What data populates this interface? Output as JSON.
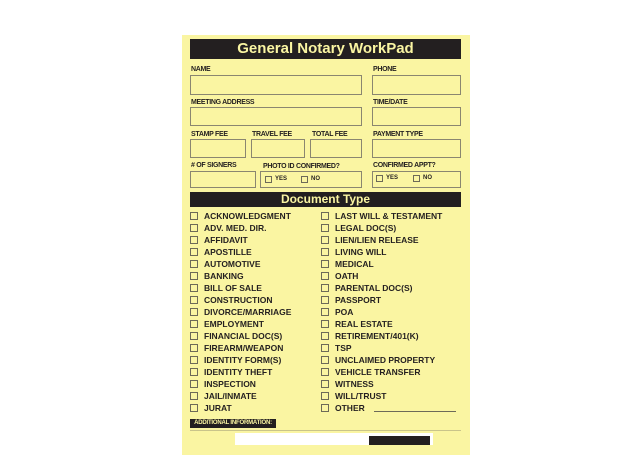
{
  "title": "General Notary WorkPad",
  "fields": {
    "name": "NAME",
    "phone": "PHONE",
    "meeting_address": "MEETING ADDRESS",
    "time_date": "TIME/DATE",
    "stamp_fee": "STAMP FEE",
    "travel_fee": "TRAVEL FEE",
    "total_fee": "TOTAL FEE",
    "payment_type": "PAYMENT TYPE",
    "signers": "# OF SIGNERS",
    "photo_id": "PHOTO ID CONFIRMED?",
    "confirmed_appt": "CONFIRMED APPT?",
    "yes": "YES",
    "no": "NO"
  },
  "document_type": {
    "heading": "Document Type",
    "left": [
      "ACKNOWLEDGMENT",
      "ADV. MED. DIR.",
      "AFFIDAVIT",
      "APOSTILLE",
      "AUTOMOTIVE",
      "BANKING",
      "BILL OF SALE",
      "CONSTRUCTION",
      "DIVORCE/MARRIAGE",
      "EMPLOYMENT",
      "FINANCIAL DOC(S)",
      "FIREARM/WEAPON",
      "IDENTITY FORM(S)",
      "IDENTITY THEFT",
      "INSPECTION",
      "JAIL/INMATE",
      "JURAT"
    ],
    "right": [
      "LAST WILL & TESTAMENT",
      "LEGAL DOC(S)",
      "LIEN/LIEN RELEASE",
      "LIVING WILL",
      "MEDICAL",
      "OATH",
      "PARENTAL DOC(S)",
      "PASSPORT",
      "POA",
      "REAL ESTATE",
      "RETIREMENT/401(K)",
      "TSP",
      "UNCLAIMED PROPERTY",
      "VEHICLE TRANSFER",
      "WITNESS",
      "WILL/TRUST",
      "OTHER"
    ]
  },
  "additional_info": "ADDITIONAL INFORMATION:"
}
